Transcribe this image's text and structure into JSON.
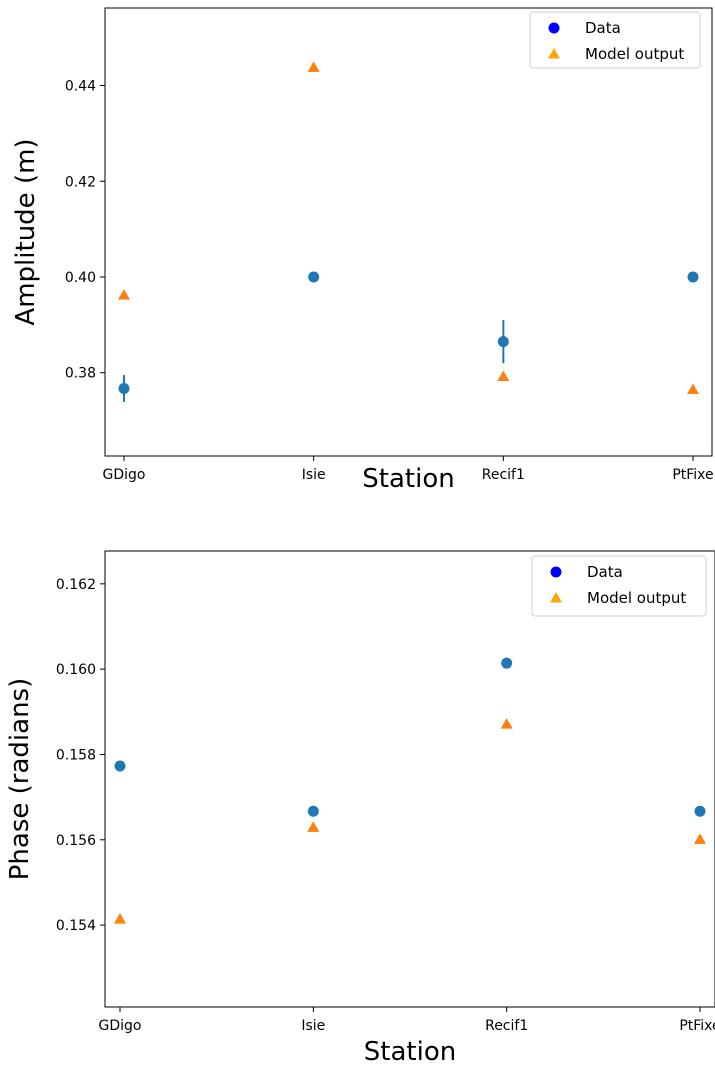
{
  "chart_data": [
    {
      "type": "scatter",
      "categories": [
        "GDigo",
        "Isie",
        "Recif1",
        "PtFixe"
      ],
      "xlabel": "Station",
      "ylabel": "Amplitude (m)",
      "ylim": [
        0.3626,
        0.4562
      ],
      "yticks": [
        "0.38",
        "0.40",
        "0.42",
        "0.44"
      ],
      "grid": false,
      "legend_position": "top-right",
      "series": [
        {
          "name": "Data",
          "marker": "circle",
          "color": "#1f77b4",
          "legend_color": "#0000ff",
          "values": [
            0.3767,
            0.4,
            0.3865,
            0.4
          ],
          "errors": [
            0.0028,
            0,
            0.0045,
            0
          ]
        },
        {
          "name": "Model output",
          "marker": "triangle",
          "color": "#ff7f0e",
          "legend_color": "#ffa500",
          "values": [
            0.3962,
            0.4438,
            0.3792,
            0.3765
          ]
        }
      ]
    },
    {
      "type": "scatter",
      "categories": [
        "GDigo",
        "Isie",
        "Recif1",
        "PtFixe"
      ],
      "xlabel": "Station",
      "ylabel": "Phase (radians)",
      "ylim": [
        0.15208,
        0.16277
      ],
      "yticks": [
        "0.154",
        "0.156",
        "0.158",
        "0.160",
        "0.162"
      ],
      "grid": false,
      "legend_position": "top-right",
      "series": [
        {
          "name": "Data",
          "marker": "circle",
          "color": "#1f77b4",
          "legend_color": "#0000ff",
          "values": [
            0.15773,
            0.15667,
            0.16014,
            0.15667
          ]
        },
        {
          "name": "Model output",
          "marker": "triangle",
          "color": "#ff7f0e",
          "legend_color": "#ffa500",
          "values": [
            0.15414,
            0.15629,
            0.15871,
            0.15601
          ]
        }
      ]
    }
  ]
}
